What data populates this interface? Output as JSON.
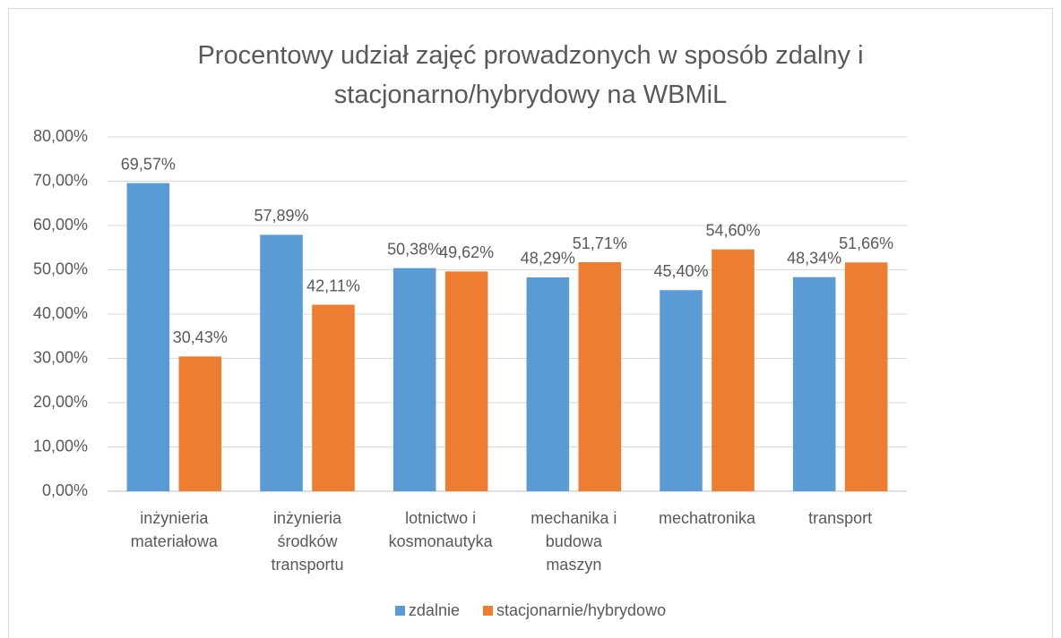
{
  "chart_data": {
    "type": "bar",
    "title": "Procentowy udział zajęć prowadzonych w sposób zdalny i\nstacjonarno/hybrydowy na WBMiL",
    "categories": [
      "inżynieria\nmateriałowa",
      "inżynieria\nśrodków\ntransportu",
      "lotnictwo i\nkosmonautyka",
      "mechanika i\nbudowa\nmaszyn",
      "mechatronika",
      "transport"
    ],
    "series": [
      {
        "name": "zdalnie",
        "color": "#5b9bd5",
        "values": [
          69.57,
          57.89,
          50.38,
          48.29,
          45.4,
          48.34
        ],
        "value_labels": [
          "69,57%",
          "57,89%",
          "50,38%",
          "48,29%",
          "45,40%",
          "48,34%"
        ]
      },
      {
        "name": "stacjonarnie/hybrydowo",
        "color": "#ed7d31",
        "values": [
          30.43,
          42.11,
          49.62,
          51.71,
          54.6,
          51.66
        ],
        "value_labels": [
          "30,43%",
          "42,11%",
          "49,62%",
          "51,71%",
          "54,60%",
          "51,66%"
        ]
      }
    ],
    "ylim": [
      0,
      80
    ],
    "yticks": [
      {
        "value": 0,
        "label": "0,00%"
      },
      {
        "value": 10,
        "label": "10,00%"
      },
      {
        "value": 20,
        "label": "20,00%"
      },
      {
        "value": 30,
        "label": "30,00%"
      },
      {
        "value": 40,
        "label": "40,00%"
      },
      {
        "value": 50,
        "label": "50,00%"
      },
      {
        "value": 60,
        "label": "60,00%"
      },
      {
        "value": 70,
        "label": "70,00%"
      },
      {
        "value": 80,
        "label": "80,00%"
      }
    ],
    "grid": true,
    "legend": "bottom"
  }
}
